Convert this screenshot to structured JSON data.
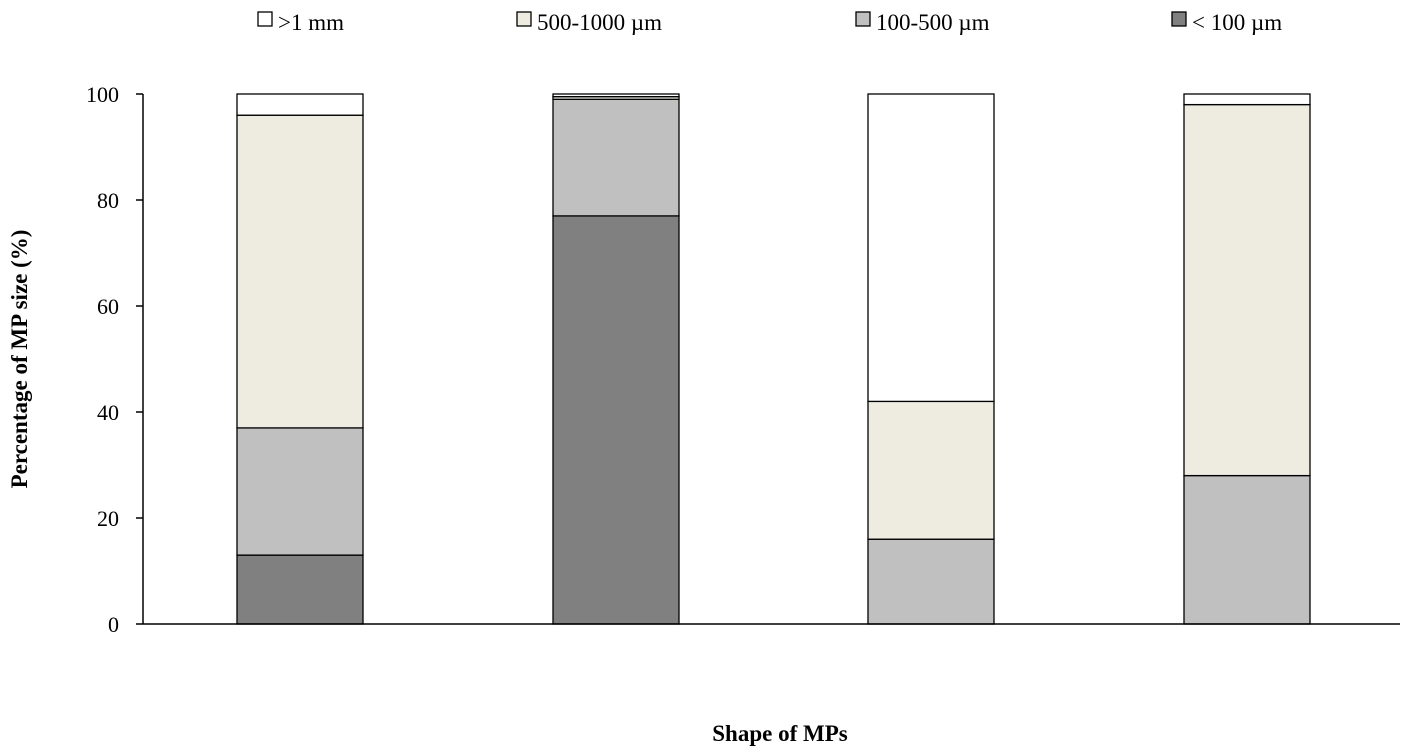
{
  "chart_data": {
    "type": "bar",
    "stacked": true,
    "title": "",
    "xlabel": "Shape of MPs",
    "ylabel": "Percentage of MP size  (%)",
    "ylim": [
      0,
      100
    ],
    "yticks": [
      0,
      20,
      40,
      60,
      80,
      100
    ],
    "grid": false,
    "legend_position": "top",
    "categories": [
      "",
      "",
      "",
      ""
    ],
    "series": [
      {
        "name": "< 100 µm",
        "color": "#808080",
        "values": [
          13,
          77,
          0,
          0
        ]
      },
      {
        "name": "100-500 µm",
        "color": "#c0c0c0",
        "values": [
          24,
          22,
          16,
          28
        ]
      },
      {
        "name": "500-1000 µm",
        "color": "#eeece1",
        "values": [
          59,
          0.5,
          26,
          70
        ]
      },
      {
        "name": ">1 mm",
        "color": "#ffffff",
        "values": [
          4,
          0.5,
          58,
          2
        ]
      }
    ],
    "legend_order": [
      ">1 mm",
      "500-1000 µm",
      "100-500 µm",
      "< 100 µm"
    ]
  }
}
